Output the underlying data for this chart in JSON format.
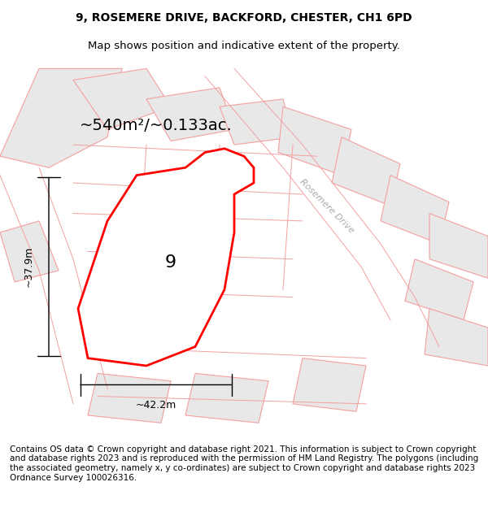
{
  "title_line1": "9, ROSEMERE DRIVE, BACKFORD, CHESTER, CH1 6PD",
  "title_line2": "Map shows position and indicative extent of the property.",
  "area_label": "~540m²/~0.133ac.",
  "width_label": "~42.2m",
  "height_label": "~37.9m",
  "plot_number": "9",
  "road_label": "Rosemere Drive",
  "footer_text": "Contains OS data © Crown copyright and database right 2021. This information is subject to Crown copyright and database rights 2023 and is reproduced with the permission of HM Land Registry. The polygons (including the associated geometry, namely x, y co-ordinates) are subject to Crown copyright and database rights 2023 Ordnance Survey 100026316.",
  "background_color": "#ffffff",
  "map_bg_color": "#ffffff",
  "plot_fill_color": "#ffffff",
  "plot_edge_color": "#ff0000",
  "other_plot_fill": "#e8e8e8",
  "other_plot_edge": "#f4a0a0",
  "road_line_color": "#f4a0a0",
  "dimension_line_color": "#000000",
  "title_color": "#000000",
  "footer_color": "#000000",
  "area_label_fontsize": 14,
  "title_fontsize": 10,
  "label_fontsize": 9,
  "footer_fontsize": 7.5
}
